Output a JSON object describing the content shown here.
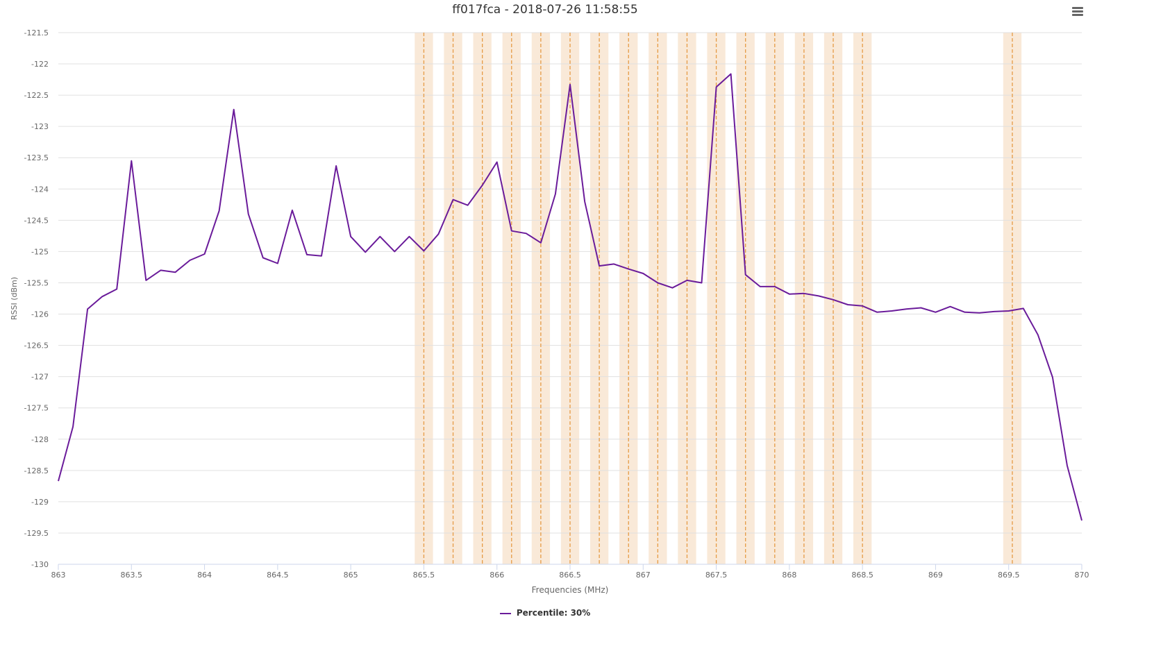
{
  "chart_data": {
    "type": "line",
    "title": "ff017fca - 2018-07-26 11:58:55",
    "xlabel": "Frequencies (MHz)",
    "ylabel": "RSSI (dBm)",
    "xlim": [
      863,
      870
    ],
    "ylim": [
      -130,
      -121.5
    ],
    "x_ticks": [
      "863",
      "863.5",
      "864",
      "864.5",
      "865",
      "865.5",
      "866",
      "866.5",
      "867",
      "867.5",
      "868",
      "868.5",
      "869",
      "869.5",
      "870"
    ],
    "y_ticks": [
      "-121.5",
      "-122",
      "-122.5",
      "-123",
      "-123.5",
      "-124",
      "-124.5",
      "-125",
      "-125.5",
      "-126",
      "-126.5",
      "-127",
      "-127.5",
      "-128",
      "-128.5",
      "-129",
      "-129.5",
      "-130"
    ],
    "grid": true,
    "legend_position": "bottom",
    "series": [
      {
        "name": "Percentile: 30%",
        "color": "#6a1b9a",
        "x": [
          863.0,
          863.1,
          863.2,
          863.3,
          863.4,
          863.5,
          863.6,
          863.7,
          863.8,
          863.9,
          864.0,
          864.1,
          864.2,
          864.3,
          864.4,
          864.5,
          864.6,
          864.7,
          864.8,
          864.9,
          865.0,
          865.1,
          865.2,
          865.3,
          865.4,
          865.5,
          865.6,
          865.7,
          865.8,
          865.9,
          866.0,
          866.1,
          866.2,
          866.3,
          866.4,
          866.5,
          866.6,
          866.7,
          866.8,
          866.9,
          867.0,
          867.1,
          867.2,
          867.3,
          867.4,
          867.5,
          867.6,
          867.7,
          867.8,
          867.9,
          868.0,
          868.1,
          868.2,
          868.3,
          868.4,
          868.5,
          868.6,
          868.7,
          868.8,
          868.9,
          869.0,
          869.1,
          869.2,
          869.3,
          869.4,
          869.5,
          869.6,
          869.7,
          869.8,
          869.9,
          870.0
        ],
        "y": [
          -128.67,
          -127.8,
          -125.92,
          -125.72,
          -125.6,
          -123.55,
          -125.46,
          -125.3,
          -125.33,
          -125.14,
          -125.04,
          -124.35,
          -122.73,
          -124.4,
          -125.1,
          -125.19,
          -124.34,
          -125.05,
          -125.07,
          -123.63,
          -124.76,
          -125.01,
          -124.76,
          -125.0,
          -124.76,
          -124.99,
          -124.72,
          -124.17,
          -124.26,
          -123.94,
          -123.57,
          -124.67,
          -124.71,
          -124.86,
          -124.08,
          -122.33,
          -124.2,
          -125.23,
          -125.2,
          -125.28,
          -125.35,
          -125.5,
          -125.58,
          -125.46,
          -125.5,
          -122.37,
          -122.16,
          -125.37,
          -125.56,
          -125.56,
          -125.68,
          -125.67,
          -125.71,
          -125.77,
          -125.85,
          -125.87,
          -125.97,
          -125.95,
          -125.92,
          -125.9,
          -125.97,
          -125.88,
          -125.97,
          -125.98,
          -125.96,
          -125.95,
          -125.91,
          -126.33,
          -127.01,
          -128.42,
          -129.3
        ]
      }
    ],
    "highlighted_channels": {
      "color": "#f7dfc8",
      "line_color": "#e69b45",
      "center_frequencies": [
        865.5,
        865.7,
        865.9,
        866.1,
        866.3,
        866.5,
        866.7,
        866.9,
        867.1,
        867.3,
        867.5,
        867.7,
        867.9,
        868.1,
        868.3,
        868.5,
        869.525
      ]
    }
  }
}
